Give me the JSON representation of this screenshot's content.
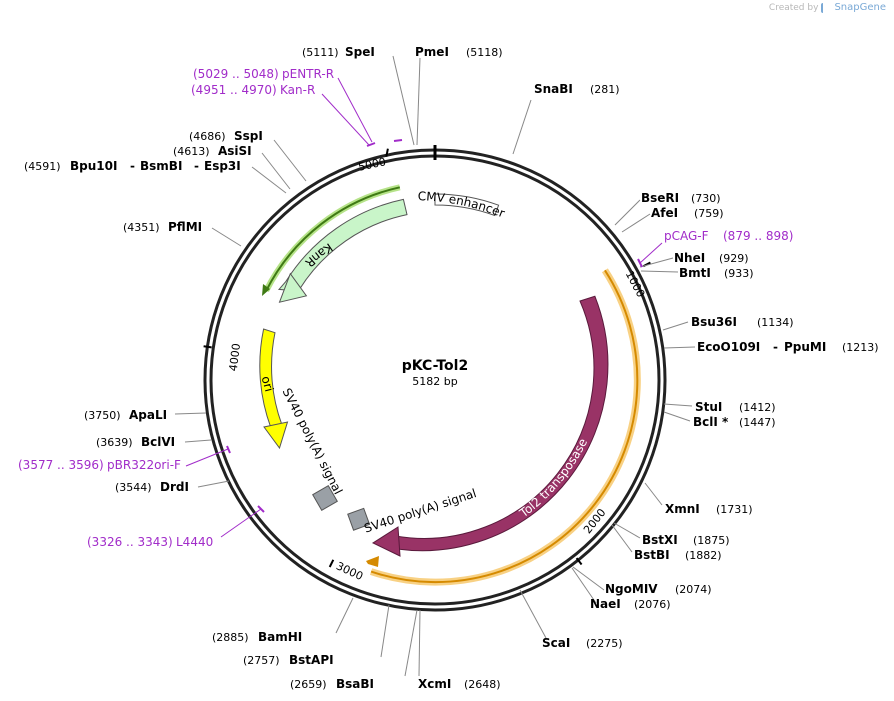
{
  "app": {
    "credit_prefix": "Created by",
    "credit_brand": "SnapGene"
  },
  "plasmid": {
    "name": "pKC-Tol2",
    "length_label": "5182 bp",
    "length": 5182
  },
  "ticks": [
    "1000",
    "2000",
    "3000",
    "4000",
    "5000"
  ],
  "enzymes": [
    {
      "name": "SpeI",
      "pos": "(5111)",
      "bp": 5111
    },
    {
      "name": "PmeI",
      "pos": "(5118)",
      "bp": 5118
    },
    {
      "name": "SnaBI",
      "pos": "(281)",
      "bp": 281
    },
    {
      "name": "BseRI",
      "pos": "(730)",
      "bp": 730
    },
    {
      "name": "AfeI",
      "pos": "(759)",
      "bp": 759
    },
    {
      "name": "NheI",
      "pos": "(929)",
      "bp": 929
    },
    {
      "name": "BmtI",
      "pos": "(933)",
      "bp": 933
    },
    {
      "name": "Bsu36I",
      "pos": "(1134)",
      "bp": 1134
    },
    {
      "name": "EcoO109I",
      "pos": "(1213)",
      "bp": 1213,
      "extra": "PpuMI"
    },
    {
      "name": "StuI",
      "pos": "(1412)",
      "bp": 1412
    },
    {
      "name": "BclI *",
      "pos": "(1447)",
      "bp": 1447
    },
    {
      "name": "XmnI",
      "pos": "(1731)",
      "bp": 1731
    },
    {
      "name": "BstXI",
      "pos": "(1875)",
      "bp": 1875
    },
    {
      "name": "BstBI",
      "pos": "(1882)",
      "bp": 1882
    },
    {
      "name": "NgoMIV",
      "pos": "(2074)",
      "bp": 2074
    },
    {
      "name": "NaeI",
      "pos": "(2076)",
      "bp": 2076
    },
    {
      "name": "ScaI",
      "pos": "(2275)",
      "bp": 2275
    },
    {
      "name": "XcmI",
      "pos": "(2648)",
      "bp": 2648
    },
    {
      "name": "BsaBI",
      "pos": "(2659)",
      "bp": 2659
    },
    {
      "name": "BstAPI",
      "pos": "(2757)",
      "bp": 2757
    },
    {
      "name": "BamHI",
      "pos": "(2885)",
      "bp": 2885
    },
    {
      "name": "DrdI",
      "pos": "(3544)",
      "bp": 3544
    },
    {
      "name": "BclVI",
      "pos": "(3639)",
      "bp": 3639
    },
    {
      "name": "ApaLI",
      "pos": "(3750)",
      "bp": 3750
    },
    {
      "name": "PflMI",
      "pos": "(4351)",
      "bp": 4351
    },
    {
      "name": "Bpu10I",
      "pos": "(4591)",
      "bp": 4591,
      "extra1": "BsmBI",
      "extra2": "Esp3I"
    },
    {
      "name": "AsiSI",
      "pos": "(4613)",
      "bp": 4613
    },
    {
      "name": "SspI",
      "pos": "(4686)",
      "bp": 4686
    }
  ],
  "primers": [
    {
      "name": "pENTR-R",
      "range": "(5029 .. 5048)"
    },
    {
      "name": "Kan-R",
      "range": "(4951 .. 4970)"
    },
    {
      "name": "pCAG-F",
      "range": "(879 .. 898)"
    },
    {
      "name": "pBR322ori-F",
      "range": "(3577 .. 3596)"
    },
    {
      "name": "L4440",
      "range": "(3326 .. 3343)"
    }
  ],
  "features": [
    {
      "name": "CMV enhancer",
      "color": "#ffffff"
    },
    {
      "name": "KanR",
      "color": "#c9f5c9"
    },
    {
      "name": "ori",
      "color": "#ffff00"
    },
    {
      "name": "SV40 poly(A) signal",
      "color": "#9aa0a6"
    },
    {
      "name": "SV40 poly(A) signal",
      "color": "#9aa0a6"
    },
    {
      "name": "Tol2 transposase",
      "color": "#993366"
    }
  ],
  "colors": {
    "primer": "#a12cc9",
    "orf_highlight": "#f5b942",
    "kan_highlight": "#8fd44a"
  }
}
